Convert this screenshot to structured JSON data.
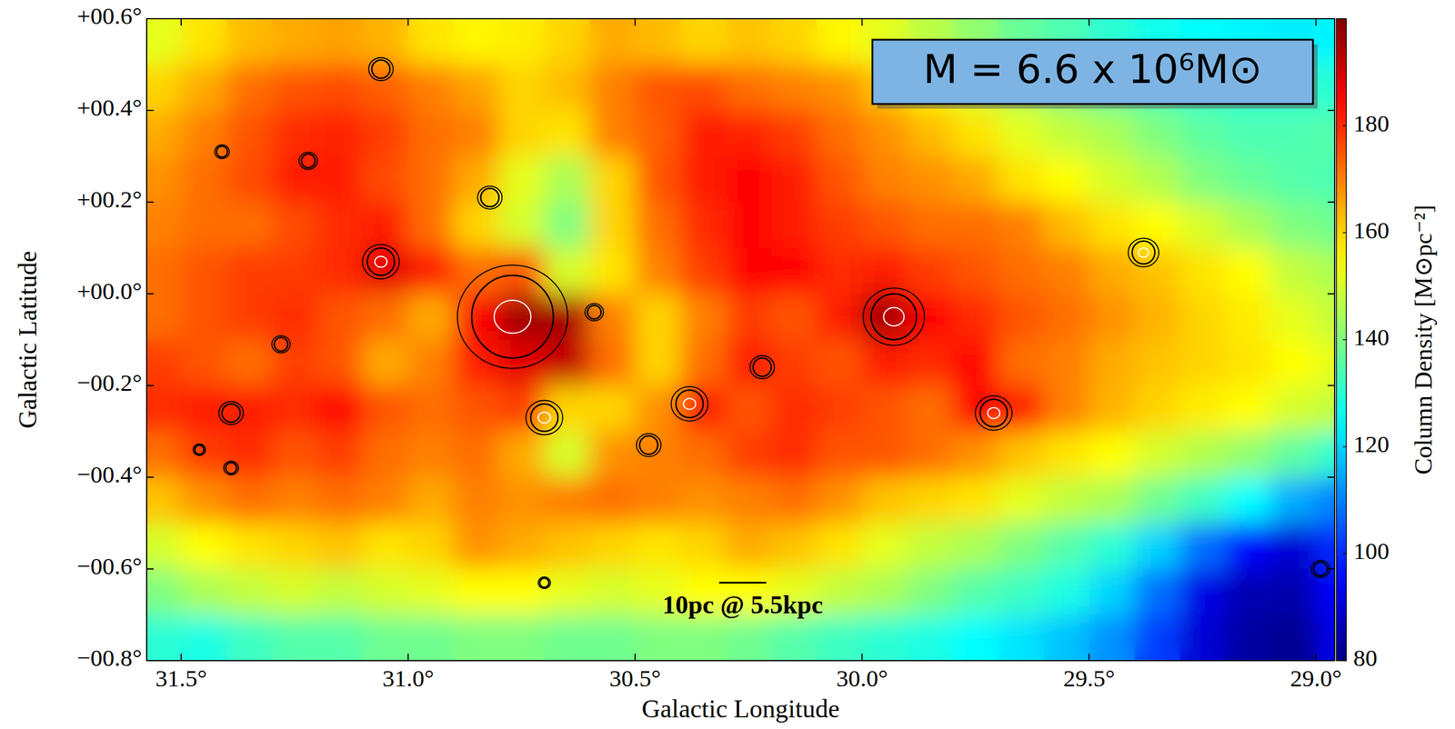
{
  "chart_data": {
    "type": "heatmap",
    "x_label": "Galactic Longitude",
    "y_label": "Galactic Latitude",
    "xlim": [
      31.576,
      28.959
    ],
    "ylim": [
      -0.8,
      0.6
    ],
    "xticks": [
      {
        "value": 31.5,
        "label": "31.5°"
      },
      {
        "value": 31.0,
        "label": "31.0°"
      },
      {
        "value": 30.5,
        "label": "30.5°"
      },
      {
        "value": 30.0,
        "label": "30.0°"
      },
      {
        "value": 29.5,
        "label": "29.5°"
      },
      {
        "value": 29.0,
        "label": "29.0°"
      }
    ],
    "yticks": [
      {
        "value": 0.6,
        "label": "+00.6°"
      },
      {
        "value": 0.4,
        "label": "+00.4°"
      },
      {
        "value": 0.2,
        "label": "+00.2°"
      },
      {
        "value": 0.0,
        "label": "+00.0°"
      },
      {
        "value": -0.2,
        "label": "−00.2°"
      },
      {
        "value": -0.4,
        "label": "−00.4°"
      },
      {
        "value": -0.6,
        "label": "−00.6°"
      },
      {
        "value": -0.8,
        "label": "−00.8°"
      }
    ],
    "x": [
      31.55,
      31.45,
      31.35,
      31.25,
      31.15,
      31.05,
      30.95,
      30.85,
      30.75,
      30.65,
      30.55,
      30.45,
      30.35,
      30.25,
      30.15,
      30.05,
      29.95,
      29.85,
      29.75,
      29.65,
      29.55,
      29.45,
      29.35,
      29.25,
      29.15,
      29.05,
      28.95
    ],
    "y": [
      0.55,
      0.45,
      0.35,
      0.25,
      0.15,
      0.05,
      -0.05,
      -0.15,
      -0.25,
      -0.35,
      -0.45,
      -0.55,
      -0.65,
      -0.75
    ],
    "cells": [
      [
        152,
        158,
        163,
        165,
        166,
        164,
        158,
        156,
        157,
        160,
        165,
        163,
        160,
        162,
        160,
        156,
        152,
        147,
        142,
        137,
        134,
        130,
        127,
        125,
        124,
        123,
        124
      ],
      [
        160,
        165,
        172,
        175,
        176,
        174,
        170,
        166,
        160,
        163,
        170,
        175,
        176,
        172,
        170,
        168,
        162,
        156,
        150,
        145,
        140,
        136,
        133,
        131,
        130,
        130,
        130
      ],
      [
        165,
        170,
        175,
        180,
        181,
        178,
        172,
        170,
        160,
        158,
        170,
        174,
        182,
        181,
        178,
        172,
        168,
        163,
        158,
        152,
        148,
        145,
        140,
        136,
        134,
        134,
        135
      ],
      [
        168,
        172,
        176,
        182,
        182,
        176,
        172,
        165,
        152,
        145,
        160,
        175,
        182,
        185,
        182,
        175,
        170,
        168,
        165,
        158,
        155,
        150,
        146,
        140,
        137,
        135,
        134
      ],
      [
        170,
        172,
        172,
        176,
        180,
        182,
        172,
        160,
        150,
        140,
        160,
        172,
        180,
        185,
        182,
        178,
        175,
        172,
        172,
        170,
        163,
        158,
        155,
        150,
        145,
        140,
        138
      ],
      [
        172,
        175,
        178,
        178,
        180,
        188,
        182,
        172,
        175,
        150,
        158,
        170,
        178,
        185,
        185,
        180,
        182,
        178,
        175,
        172,
        170,
        165,
        162,
        158,
        155,
        148,
        145
      ],
      [
        172,
        175,
        178,
        180,
        175,
        172,
        165,
        185,
        196,
        195,
        170,
        160,
        170,
        178,
        175,
        182,
        195,
        185,
        180,
        175,
        172,
        168,
        164,
        160,
        157,
        152,
        148
      ],
      [
        178,
        175,
        172,
        178,
        175,
        165,
        170,
        182,
        188,
        192,
        172,
        160,
        172,
        182,
        178,
        175,
        182,
        180,
        185,
        172,
        170,
        165,
        162,
        160,
        158,
        155,
        152
      ],
      [
        180,
        182,
        182,
        180,
        185,
        175,
        172,
        175,
        178,
        160,
        160,
        168,
        182,
        175,
        180,
        178,
        175,
        172,
        185,
        182,
        170,
        164,
        160,
        157,
        155,
        150,
        148
      ],
      [
        172,
        178,
        180,
        175,
        178,
        172,
        170,
        172,
        165,
        150,
        168,
        170,
        172,
        178,
        180,
        175,
        175,
        172,
        168,
        162,
        158,
        155,
        150,
        146,
        142,
        136,
        130
      ],
      [
        162,
        168,
        172,
        170,
        172,
        170,
        165,
        170,
        168,
        170,
        172,
        170,
        168,
        170,
        172,
        168,
        162,
        160,
        158,
        152,
        148,
        145,
        138,
        132,
        125,
        115,
        110
      ],
      [
        150,
        155,
        158,
        160,
        162,
        158,
        160,
        168,
        165,
        162,
        160,
        158,
        160,
        165,
        162,
        158,
        152,
        148,
        145,
        140,
        135,
        130,
        120,
        108,
        95,
        90,
        100
      ],
      [
        140,
        145,
        148,
        150,
        148,
        150,
        152,
        155,
        155,
        152,
        150,
        152,
        155,
        155,
        152,
        148,
        145,
        140,
        135,
        132,
        128,
        120,
        108,
        92,
        86,
        85,
        95
      ],
      [
        130,
        128,
        132,
        135,
        135,
        138,
        138,
        140,
        140,
        138,
        138,
        140,
        140,
        138,
        135,
        132,
        130,
        128,
        125,
        122,
        118,
        112,
        102,
        90,
        84,
        82,
        92
      ]
    ],
    "colorbar": {
      "label": "Column Density [M⊙pc⁻²]",
      "lim": [
        80,
        200
      ],
      "ticks": [
        80,
        100,
        120,
        140,
        160,
        180
      ]
    },
    "annotation": "M = 6.6 x 10⁶M⊙",
    "scale_bar": {
      "label": "10pc @ 5.5kpc",
      "l": 30.315,
      "b": -0.63,
      "length_deg": 0.104
    },
    "sources": [
      {
        "l": 30.77,
        "b": -0.05,
        "r": 0.09
      },
      {
        "l": 29.93,
        "b": -0.05,
        "r": 0.05
      },
      {
        "l": 29.71,
        "b": -0.26,
        "r": 0.03
      },
      {
        "l": 31.06,
        "b": 0.07,
        "r": 0.03
      },
      {
        "l": 30.82,
        "b": 0.21,
        "r": 0.02
      },
      {
        "l": 30.7,
        "b": -0.27,
        "r": 0.03
      },
      {
        "l": 31.41,
        "b": 0.31,
        "r": 0.012
      },
      {
        "l": 31.39,
        "b": -0.38,
        "r": 0.012
      },
      {
        "l": 31.39,
        "b": -0.26,
        "r": 0.02
      },
      {
        "l": 31.46,
        "b": -0.34,
        "r": 0.01
      },
      {
        "l": 30.38,
        "b": -0.24,
        "r": 0.03
      },
      {
        "l": 30.22,
        "b": -0.16,
        "r": 0.02
      },
      {
        "l": 30.59,
        "b": -0.04,
        "r": 0.015
      },
      {
        "l": 29.38,
        "b": 0.09,
        "r": 0.025
      },
      {
        "l": 28.99,
        "b": -0.6,
        "r": 0.015
      },
      {
        "l": 31.28,
        "b": -0.11,
        "r": 0.015
      },
      {
        "l": 30.7,
        "b": -0.63,
        "r": 0.01
      },
      {
        "l": 31.22,
        "b": 0.29,
        "r": 0.015
      },
      {
        "l": 30.47,
        "b": -0.33,
        "r": 0.02
      },
      {
        "l": 31.06,
        "b": 0.49,
        "r": 0.02
      }
    ]
  }
}
